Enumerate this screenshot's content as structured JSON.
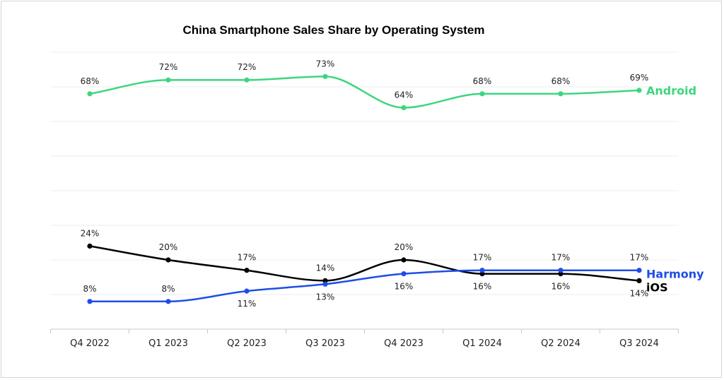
{
  "chart_data": {
    "type": "line",
    "title": "China Smartphone Sales Share by Operating System",
    "xlabel": "",
    "ylabel": "",
    "categories": [
      "Q4 2022",
      "Q1 2023",
      "Q2 2023",
      "Q3 2023",
      "Q4 2023",
      "Q1 2024",
      "Q2 2024",
      "Q3 2024"
    ],
    "ylim": [
      0,
      80
    ],
    "grid": true,
    "legend": "right-end-labels",
    "series": [
      {
        "name": "Android",
        "color": "#3cd67f",
        "values": [
          68,
          72,
          72,
          73,
          64,
          68,
          68,
          69
        ],
        "labels": [
          "68%",
          "72%",
          "72%",
          "73%",
          "64%",
          "68%",
          "68%",
          "69%"
        ]
      },
      {
        "name": "iOS",
        "color": "#000000",
        "values": [
          24,
          20,
          17,
          14,
          20,
          16,
          16,
          14
        ],
        "labels": [
          "24%",
          "20%",
          "17%",
          "14%",
          "20%",
          "16%",
          "16%",
          "14%"
        ]
      },
      {
        "name": "Harmony",
        "color": "#1f4de8",
        "values": [
          8,
          8,
          11,
          13,
          16,
          17,
          17,
          17
        ],
        "labels": [
          "8%",
          "8%",
          "11%",
          "13%",
          "16%",
          "17%",
          "17%",
          "17%"
        ]
      }
    ]
  }
}
